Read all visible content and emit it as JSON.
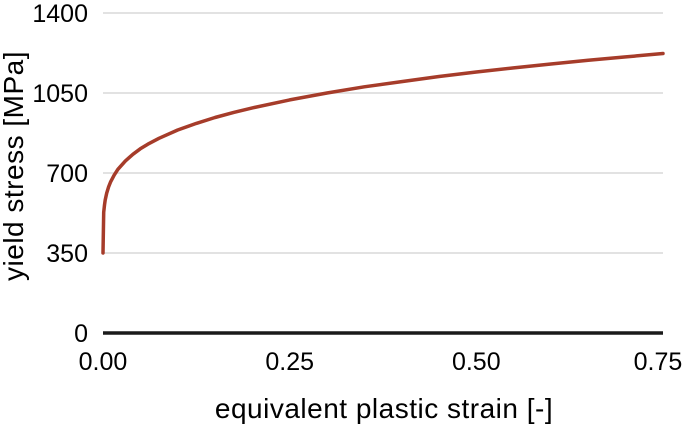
{
  "chart_data": {
    "type": "line",
    "title": "",
    "xlabel": "equivalent plastic strain [-]",
    "ylabel": "yield stress [MPa]",
    "xlim": [
      0,
      0.75
    ],
    "ylim": [
      0,
      1400
    ],
    "x_ticks": [
      0.0,
      0.25,
      0.5,
      0.75
    ],
    "x_tick_labels": [
      "0.00",
      "0.25",
      "0.50",
      "0.75"
    ],
    "y_ticks": [
      0,
      350,
      700,
      1050,
      1400
    ],
    "y_tick_labels": [
      "0",
      "350",
      "700",
      "1050",
      "1400"
    ],
    "grid": "horizontal-only",
    "legend": "none",
    "series": [
      {
        "name": "yield-stress-curve",
        "color": "#a63c2a",
        "x": [
          0.0,
          0.001,
          0.002,
          0.003,
          0.005,
          0.0075,
          0.01,
          0.015,
          0.02,
          0.03,
          0.04,
          0.05,
          0.06,
          0.075,
          0.1,
          0.125,
          0.15,
          0.175,
          0.2,
          0.25,
          0.3,
          0.35,
          0.4,
          0.45,
          0.5,
          0.55,
          0.6,
          0.65,
          0.7,
          0.75
        ],
        "y": [
          350,
          528,
          560,
          582,
          612,
          639,
          660,
          691,
          716,
          753,
          782,
          806,
          826,
          852,
          888,
          917,
          943,
          965,
          985,
          1020,
          1050,
          1077,
          1100,
          1122,
          1142,
          1160,
          1177,
          1193,
          1208,
          1223
        ]
      }
    ]
  },
  "colors": {
    "curve": "#a63c2a",
    "gridline": "#d9d9d9",
    "axis_line": "#1a1a1a",
    "text": "#000000",
    "background": "#ffffff"
  }
}
